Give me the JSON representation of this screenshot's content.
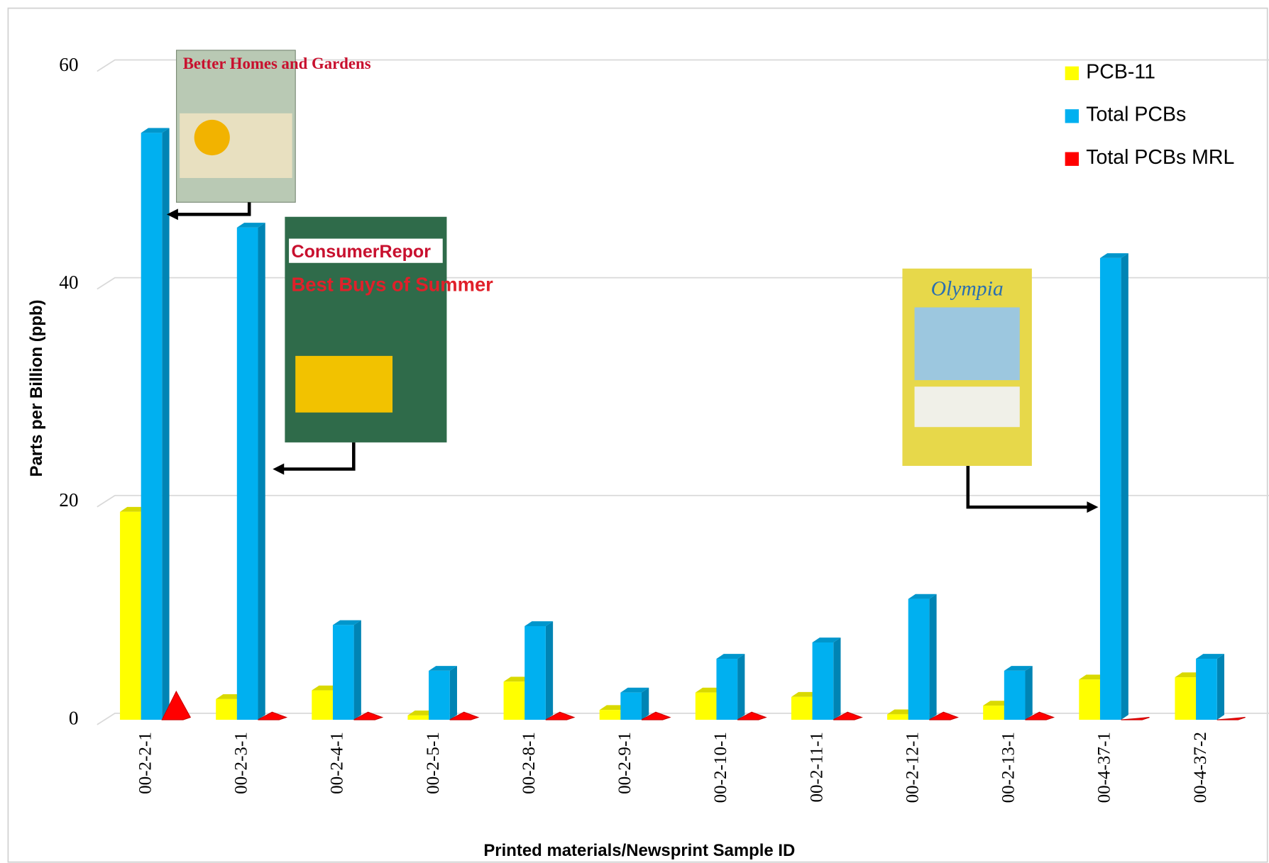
{
  "chart_data": {
    "type": "bar3d",
    "x_label": "Printed materials/Newsprint Sample ID",
    "y_label": "Parts per Billion (ppb)",
    "categories": [
      "00-2-2-1",
      "00-2-3-1",
      "00-2-4-1",
      "00-2-5-1",
      "00-2-8-1",
      "00-2-9-1",
      "00-2-10-1",
      "00-2-11-1",
      "00-2-12-1",
      "00-2-13-1",
      "00-4-37-1",
      "00-4-37-2"
    ],
    "series": [
      {
        "name": "PCB-11",
        "color": "#ffff00",
        "values": [
          19.1,
          1.9,
          2.7,
          0.4,
          3.5,
          0.9,
          2.5,
          2.1,
          0.5,
          1.3,
          3.7,
          3.9
        ]
      },
      {
        "name": "Total PCBs",
        "color": "#00b0f0",
        "values": [
          53.9,
          45.2,
          8.7,
          4.5,
          8.6,
          2.5,
          5.6,
          7.1,
          11.1,
          4.5,
          42.4,
          5.6
        ]
      },
      {
        "name": "Total PCBs MRL",
        "color": "#ff0000",
        "values": [
          2.6,
          0.7,
          0.7,
          0.7,
          0.7,
          0.7,
          0.7,
          0.7,
          0.7,
          0.7,
          0.1,
          0.1
        ]
      }
    ],
    "ylim": [
      0,
      60
    ],
    "yticks": [
      0,
      20,
      40,
      60
    ],
    "grid": true,
    "legend": "top-right",
    "annotations": [
      "Better Homes and Gardens",
      "ConsumerRepor",
      "Best Buys of Summer",
      "Olympia"
    ]
  }
}
